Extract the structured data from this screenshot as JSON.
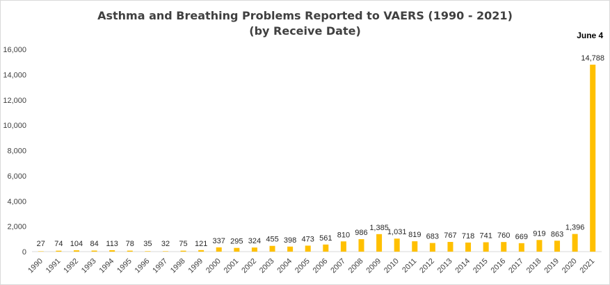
{
  "chart_data": {
    "type": "bar",
    "title": "Asthma and Breathing Problems Reported to VAERS (1990 - 2021)",
    "subtitle": "(by Receive Date)",
    "annotation": "June 4",
    "categories": [
      "1990",
      "1991",
      "1992",
      "1993",
      "1994",
      "1995",
      "1996",
      "1997",
      "1998",
      "1999",
      "2000",
      "2001",
      "2002",
      "2003",
      "2004",
      "2005",
      "2006",
      "2007",
      "2008",
      "2009",
      "2010",
      "2011",
      "2012",
      "2013",
      "2014",
      "2015",
      "2016",
      "2017",
      "2018",
      "2019",
      "2020",
      "2021"
    ],
    "values": [
      27,
      74,
      104,
      84,
      113,
      78,
      35,
      32,
      75,
      121,
      337,
      295,
      324,
      455,
      398,
      473,
      561,
      810,
      986,
      1385,
      1031,
      819,
      683,
      767,
      718,
      741,
      760,
      669,
      919,
      863,
      1396,
      14788
    ],
    "value_labels": [
      "27",
      "74",
      "104",
      "84",
      "113",
      "78",
      "35",
      "32",
      "75",
      "121",
      "337",
      "295",
      "324",
      "455",
      "398",
      "473",
      "561",
      "810",
      "986",
      "1,385",
      "1,031",
      "819",
      "683",
      "767",
      "718",
      "741",
      "760",
      "669",
      "919",
      "863",
      "1,396",
      "14,788"
    ],
    "yticks": [
      "0",
      "2,000",
      "4,000",
      "6,000",
      "8,000",
      "10,000",
      "12,000",
      "14,000",
      "16,000"
    ],
    "ylim": [
      0,
      16000
    ],
    "bar_color": "#FFC000",
    "grid": false,
    "legend": "none"
  }
}
